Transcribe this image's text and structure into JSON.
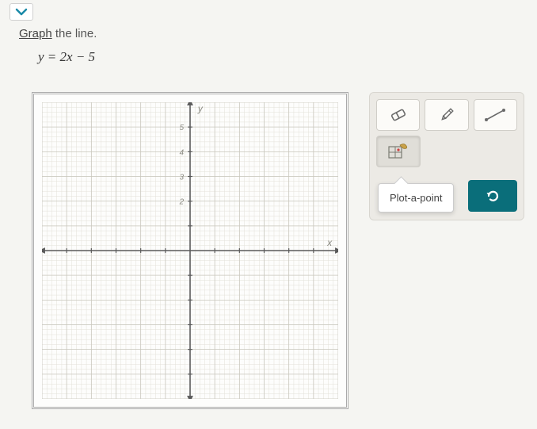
{
  "instruction": {
    "underlined": "Graph",
    "rest": " the line."
  },
  "equation": "y = 2x − 5",
  "tooltip": "Plot-a-point",
  "graph": {
    "type": "cartesian-grid",
    "xlim": [
      -6,
      6
    ],
    "ylim": [
      -6,
      6
    ],
    "major_step": 1,
    "minor_per_major": 5,
    "background_color": "#fdfdfc",
    "minor_grid_color": "#e2e0d8",
    "major_grid_color": "#c9c7bd",
    "axis_color": "#5a5a5a",
    "tick_label_color": "#8a8a82",
    "x_axis_label": "x",
    "y_axis_label": "y",
    "y_ticks_visible": [
      2,
      3,
      4,
      5
    ]
  },
  "toolbox": {
    "background_color": "#eceae5",
    "button_bg": "#fcfbf8",
    "button_border": "#d0cec8",
    "selected_bg": "#e0ded8",
    "undo_bg": "#0a6e7a",
    "undo_icon_color": "#ffffff",
    "tools": [
      {
        "name": "eraser",
        "selected": false
      },
      {
        "name": "pencil",
        "selected": false
      },
      {
        "name": "line",
        "selected": false
      },
      {
        "name": "plot-a-point",
        "selected": true
      }
    ]
  }
}
